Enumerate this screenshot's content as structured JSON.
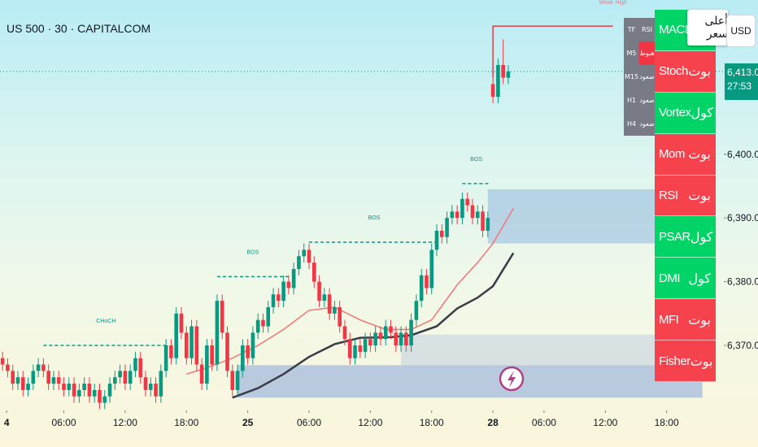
{
  "chart_data": {
    "type": "candlestick",
    "title": "US 500 · 30 · CAPITALCOM",
    "currency": "USD",
    "x": [
      0,
      1,
      2,
      3,
      4,
      5,
      6,
      7,
      8,
      9,
      10,
      11,
      12,
      13,
      14,
      15,
      16,
      17,
      18,
      19,
      20,
      21,
      22,
      23,
      24,
      25,
      26,
      27,
      28,
      29,
      30,
      31,
      32,
      33,
      34,
      35,
      36,
      37,
      38,
      39,
      40,
      41,
      42,
      43,
      44,
      45,
      46,
      47,
      48,
      49,
      50,
      51,
      52,
      53,
      54,
      55,
      56,
      57,
      58,
      59,
      60,
      61,
      62,
      63,
      64,
      65,
      66,
      67,
      68,
      69,
      70,
      71,
      72,
      73,
      74,
      75,
      76,
      77,
      78,
      79,
      80,
      81,
      82,
      83,
      84,
      85,
      86,
      87,
      88,
      89,
      90,
      91,
      92,
      93,
      94,
      95,
      96,
      97,
      98,
      99
    ],
    "open": [
      6368,
      6367,
      6366,
      6364,
      6365,
      6363,
      6364,
      6366,
      6367,
      6366,
      6364,
      6365,
      6364,
      6363,
      6364,
      6362,
      6363,
      6364,
      6362,
      6363,
      6361,
      6362,
      6364,
      6365,
      6366,
      6364,
      6366,
      6368,
      6365,
      6363,
      6364,
      6362,
      6366,
      6370,
      6368,
      6375,
      6372,
      6368,
      6373,
      6367,
      6364,
      6370,
      6367,
      6377,
      6372,
      6366,
      6363,
      6366,
      6370,
      6368,
      6372,
      6374,
      6373,
      6376,
      6378,
      6377,
      6380,
      6379,
      6382,
      6384,
      6385,
      6383,
      6380,
      6377,
      6378,
      6375,
      6376,
      6373,
      6371,
      6368,
      6370,
      6369,
      6371,
      6370,
      6372,
      6371,
      6373,
      6372,
      6370,
      6372,
      6370,
      6374,
      6377,
      6381,
      6379,
      6385,
      6388,
      6387,
      6390,
      6391,
      6390,
      6393,
      6392,
      6390,
      6391,
      6388,
      6411,
      6409,
      6414,
      6412
    ],
    "high": [
      6369,
      6368,
      6367,
      6366,
      6366,
      6365,
      6367,
      6368,
      6368,
      6367,
      6366,
      6366,
      6365,
      6365,
      6365,
      6364,
      6365,
      6365,
      6364,
      6364,
      6363,
      6365,
      6366,
      6367,
      6367,
      6367,
      6369,
      6369,
      6366,
      6365,
      6365,
      6367,
      6371,
      6371,
      6376,
      6376,
      6373,
      6374,
      6374,
      6368,
      6371,
      6371,
      6378,
      6378,
      6373,
      6367,
      6367,
      6371,
      6371,
      6373,
      6375,
      6375,
      6377,
      6379,
      6379,
      6381,
      6381,
      6383,
      6385,
      6386,
      6386,
      6384,
      6381,
      6379,
      6379,
      6377,
      6377,
      6374,
      6372,
      6371,
      6371,
      6372,
      6372,
      6373,
      6373,
      6374,
      6374,
      6373,
      6373,
      6373,
      6375,
      6378,
      6382,
      6382,
      6386,
      6389,
      6389,
      6391,
      6392,
      6392,
      6394,
      6394,
      6393,
      6392,
      6392,
      6391,
      6412,
      6415,
      6418,
      6414
    ],
    "low": [
      6366,
      6365,
      6363,
      6363,
      6362,
      6362,
      6363,
      6365,
      6365,
      6363,
      6363,
      6363,
      6362,
      6362,
      6361,
      6361,
      6362,
      6361,
      6361,
      6360,
      6360,
      6361,
      6363,
      6364,
      6363,
      6363,
      6365,
      6364,
      6362,
      6362,
      6361,
      6361,
      6365,
      6367,
      6367,
      6371,
      6367,
      6367,
      6366,
      6363,
      6363,
      6366,
      6366,
      6371,
      6365,
      6362,
      6362,
      6365,
      6367,
      6367,
      6371,
      6372,
      6372,
      6375,
      6376,
      6376,
      6378,
      6378,
      6381,
      6383,
      6382,
      6379,
      6376,
      6376,
      6374,
      6374,
      6372,
      6370,
      6367,
      6367,
      6368,
      6368,
      6369,
      6369,
      6370,
      6370,
      6371,
      6369,
      6369,
      6369,
      6369,
      6373,
      6376,
      6378,
      6378,
      6384,
      6386,
      6386,
      6389,
      6389,
      6389,
      6391,
      6389,
      6389,
      6387,
      6387,
      6408,
      6408,
      6411,
      6411
    ],
    "close": [
      6367,
      6366,
      6364,
      6365,
      6363,
      6364,
      6366,
      6367,
      6366,
      6364,
      6365,
      6364,
      6363,
      6364,
      6362,
      6363,
      6364,
      6362,
      6363,
      6361,
      6362,
      6364,
      6365,
      6366,
      6364,
      6366,
      6368,
      6365,
      6363,
      6364,
      6362,
      6366,
      6370,
      6368,
      6375,
      6372,
      6368,
      6373,
      6367,
      6364,
      6370,
      6367,
      6377,
      6372,
      6366,
      6363,
      6366,
      6370,
      6368,
      6372,
      6374,
      6373,
      6376,
      6378,
      6377,
      6380,
      6379,
      6382,
      6384,
      6385,
      6383,
      6380,
      6377,
      6378,
      6375,
      6376,
      6373,
      6371,
      6368,
      6370,
      6369,
      6371,
      6370,
      6372,
      6371,
      6373,
      6372,
      6370,
      6372,
      6370,
      6374,
      6377,
      6381,
      6379,
      6385,
      6388,
      6387,
      6390,
      6391,
      6390,
      6393,
      6392,
      6390,
      6391,
      6388,
      6390,
      6409,
      6414,
      6412,
      6413
    ],
    "up_color": "#089981",
    "down_color": "#f23645",
    "xlim": [
      -0.5,
      141.2
    ],
    "ylim": [
      6359.8,
      6424.2
    ],
    "xticks": [
      {
        "value": 0.8,
        "label": "4"
      },
      {
        "value": 12,
        "label": "06:00"
      },
      {
        "value": 24,
        "label": "12:00"
      },
      {
        "value": 36,
        "label": "18:00"
      },
      {
        "value": 48,
        "label": "25"
      },
      {
        "value": 60,
        "label": "06:00"
      },
      {
        "value": 72,
        "label": "12:00"
      },
      {
        "value": 84,
        "label": "18:00"
      },
      {
        "value": 96,
        "label": "28"
      },
      {
        "value": 106,
        "label": "06:00"
      },
      {
        "value": 118,
        "label": "12:00"
      },
      {
        "value": 130,
        "label": "18:00"
      }
    ],
    "yticks": [
      {
        "value": 6370,
        "label": "6,370.0"
      },
      {
        "value": 6380,
        "label": "6,380.0"
      },
      {
        "value": 6390,
        "label": "6,390.0"
      },
      {
        "value": 6400,
        "label": "6,400.0"
      }
    ],
    "last_price": {
      "value": 6413,
      "label": "6,413.0",
      "countdown": "27:53",
      "color": "#089981"
    },
    "lines": [
      {
        "color": "#ee7d7d",
        "x": [
          36,
          40,
          45,
          50,
          55,
          60,
          65,
          70,
          75,
          80,
          84,
          89,
          93,
          96,
          100
        ],
        "values": [
          6365.5,
          6366.5,
          6368,
          6370,
          6372.5,
          6375.5,
          6376,
          6374,
          6372.5,
          6372.5,
          6374,
          6379.5,
          6383,
          6386,
          6391.5
        ]
      },
      {
        "color": "#3a3d48",
        "x": [
          45,
          50,
          55,
          60,
          65,
          70,
          76,
          80,
          85,
          89,
          93,
          96,
          100
        ],
        "values": [
          6361.8,
          6363.3,
          6365.5,
          6368.2,
          6370.2,
          6371.2,
          6371.3,
          6371.6,
          6373,
          6375.8,
          6377.5,
          6379.3,
          6384.5
        ]
      }
    ],
    "zones": [
      {
        "x": [
          95,
          137
        ],
        "y": [
          6386,
          6394.5
        ],
        "color": "rgba(120,165,220,0.42)"
      },
      {
        "x": [
          78,
          137
        ],
        "y": [
          6366.9,
          6371.7
        ],
        "color": "rgba(140,170,220,0.28)"
      },
      {
        "x": [
          46,
          137
        ],
        "y": [
          6361.8,
          6366.9
        ],
        "color": "rgba(100,140,220,0.42)"
      }
    ],
    "structure": [
      {
        "label": "CHoCH",
        "x": [
          8,
          32.5
        ],
        "y": 6370
      },
      {
        "label": "BOS",
        "x": [
          42,
          56
        ],
        "y": 6380.8
      },
      {
        "label": "BOS",
        "x": [
          60,
          85.5
        ],
        "y": 6386.2
      },
      {
        "label": "BOS",
        "x": [
          90,
          95.5
        ],
        "y": 6395.4
      }
    ],
    "weak_high": {
      "label": "Weak High",
      "x": [
        96,
        119.5
      ],
      "y": 6420.1,
      "color": "#f23645"
    }
  },
  "indicator_panel": {
    "rows": [
      {
        "name": "MACD",
        "color": "#00d466"
      },
      {
        "name": "Stoch",
        "signal": "بوت",
        "color": "#f5424d"
      },
      {
        "name": "Vortex",
        "signal": "كول",
        "color": "#00d466"
      },
      {
        "name": "Mom",
        "signal": "بوت",
        "color": "#f5424d"
      },
      {
        "name": "RSI",
        "signal": "بوت",
        "color": "#f5424d"
      },
      {
        "name": "PSAR",
        "signal": "كول",
        "color": "#00d466"
      },
      {
        "name": "DMI",
        "signal": "كول",
        "color": "#00d466"
      },
      {
        "name": "MFI",
        "signal": "بوت",
        "color": "#f5424d"
      },
      {
        "name": "Fisher",
        "signal": "بوت",
        "color": "#f5424d"
      }
    ]
  },
  "tooltip": "أعلى سعر",
  "tf_table": {
    "header": [
      "TF",
      "RSI"
    ],
    "rows": [
      {
        "tf": "M5",
        "rsi": "هبوط",
        "color": "#f23645"
      },
      {
        "tf": "M15",
        "rsi": "صعود",
        "color": "#787b86"
      },
      {
        "tf": "H1",
        "rsi": "صعود",
        "color": "#787b86"
      },
      {
        "tf": "H4",
        "rsi": "صعود",
        "color": "#787b86"
      }
    ]
  }
}
